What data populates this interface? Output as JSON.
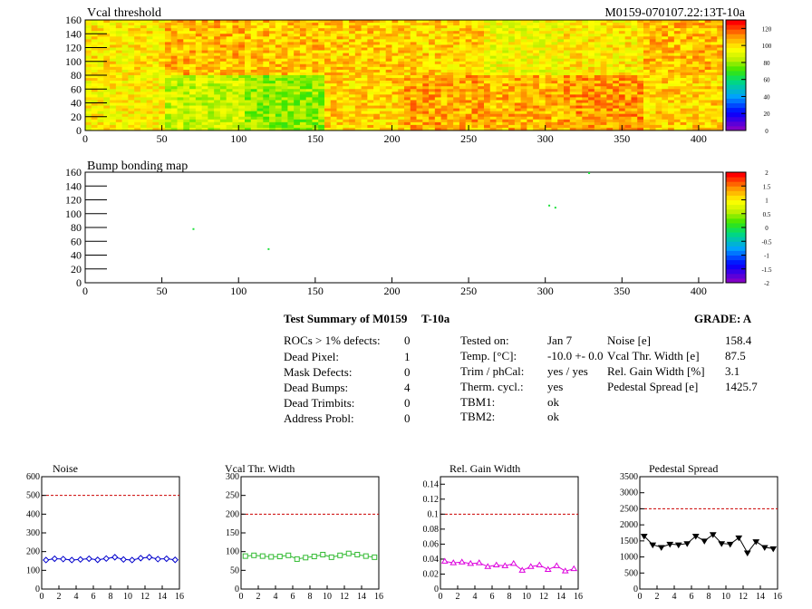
{
  "header": {
    "vcal_title": "Vcal threshold",
    "module_id": "M0159-070107.22:13T-10a",
    "bump_title": "Bump bonding map"
  },
  "map_axes": {
    "x_ticks": [
      "0",
      "50",
      "100",
      "150",
      "200",
      "250",
      "300",
      "350",
      "400"
    ],
    "y_ticks": [
      "0",
      "20",
      "40",
      "60",
      "80",
      "100",
      "120",
      "140",
      "160"
    ]
  },
  "vcal_scale": [
    "0",
    "20",
    "40",
    "60",
    "80",
    "100",
    "120"
  ],
  "bump_scale": [
    "-2",
    "-1.5",
    "-1",
    "-0.5",
    "0",
    "0.5",
    "1",
    "1.5",
    "2"
  ],
  "colors": {
    "ref_line": "#cc0000",
    "noise": "#0000cc",
    "vcal": "#33bb33",
    "gain": "#dd00dd",
    "pedestal": "#000000"
  },
  "summary": {
    "title": "Test Summary of M0159",
    "temp_tag": "T-10a",
    "grade": "GRADE:  A",
    "col1": [
      {
        "label": "ROCs > 1% defects:",
        "value": "0"
      },
      {
        "label": "Dead Pixel:",
        "value": "1"
      },
      {
        "label": "Mask Defects:",
        "value": "0"
      },
      {
        "label": "Dead Bumps:",
        "value": "4"
      },
      {
        "label": "Dead Trimbits:",
        "value": "0"
      },
      {
        "label": "Address Probl:",
        "value": "0"
      }
    ],
    "col2": [
      {
        "label": "Tested on:",
        "value": "Jan 7"
      },
      {
        "label": "Temp. [°C]:",
        "value": "-10.0 +- 0.0"
      },
      {
        "label": "Trim / phCal:",
        "value": "yes / yes"
      },
      {
        "label": "Therm. cycl.:",
        "value": "yes"
      },
      {
        "label": "TBM1:",
        "value": "ok"
      },
      {
        "label": "TBM2:",
        "value": "ok"
      }
    ],
    "col3": [
      {
        "label": "Noise [e]",
        "value": "158.4"
      },
      {
        "label": "Vcal Thr. Width [e]",
        "value": "87.5"
      },
      {
        "label": "Rel. Gain Width [%]",
        "value": "3.1"
      },
      {
        "label": "Pedestal Spread [e]",
        "value": "1425.7"
      }
    ]
  },
  "chart_data": [
    {
      "type": "heatmap",
      "title": "Vcal threshold",
      "xlim": [
        0,
        416
      ],
      "ylim": [
        0,
        160
      ],
      "zlim": [
        0,
        130
      ],
      "roc_mean_z": [
        [
          100,
          108,
          106,
          105,
          104,
          95,
          100,
          107
        ],
        [
          98,
          88,
          80,
          104,
          110,
          108,
          112,
          104
        ]
      ],
      "roc_layout": "2 rows x 8 ROCs (top row first)"
    },
    {
      "type": "heatmap",
      "title": "Bump bonding map",
      "xlim": [
        0,
        416
      ],
      "ylim": [
        0,
        160
      ],
      "zlim": [
        -2,
        2
      ],
      "points": [
        {
          "x": 70,
          "y": 79,
          "z": 0
        },
        {
          "x": 119,
          "y": 50,
          "z": 0
        },
        {
          "x": 302,
          "y": 113,
          "z": 0
        },
        {
          "x": 306,
          "y": 110,
          "z": 0
        },
        {
          "x": 328,
          "y": 160,
          "z": 0
        }
      ]
    },
    {
      "type": "scatter",
      "title": "Noise",
      "xlim": [
        0,
        16
      ],
      "ylim": [
        0,
        600
      ],
      "x_ticks": [
        "0",
        "2",
        "4",
        "6",
        "8",
        "10",
        "12",
        "14",
        "16"
      ],
      "y_ticks": [
        "0",
        "100",
        "200",
        "300",
        "400",
        "500",
        "600"
      ],
      "reference": 500,
      "x": [
        0.5,
        1.5,
        2.5,
        3.5,
        4.5,
        5.5,
        6.5,
        7.5,
        8.5,
        9.5,
        10.5,
        11.5,
        12.5,
        13.5,
        14.5,
        15.5
      ],
      "values": [
        155,
        162,
        160,
        155,
        158,
        162,
        156,
        163,
        170,
        158,
        155,
        165,
        170,
        160,
        162,
        156
      ]
    },
    {
      "type": "scatter",
      "title": "Vcal Thr. Width",
      "xlim": [
        0,
        16
      ],
      "ylim": [
        0,
        300
      ],
      "x_ticks": [
        "0",
        "2",
        "4",
        "6",
        "8",
        "10",
        "12",
        "14",
        "16"
      ],
      "y_ticks": [
        "0",
        "50",
        "100",
        "150",
        "200",
        "250",
        "300"
      ],
      "reference": 200,
      "x": [
        0.5,
        1.5,
        2.5,
        3.5,
        4.5,
        5.5,
        6.5,
        7.5,
        8.5,
        9.5,
        10.5,
        11.5,
        12.5,
        13.5,
        14.5,
        15.5
      ],
      "values": [
        88,
        90,
        88,
        86,
        87,
        90,
        80,
        84,
        87,
        92,
        85,
        90,
        95,
        92,
        88,
        85
      ]
    },
    {
      "type": "scatter",
      "title": "Rel. Gain Width",
      "xlim": [
        0,
        16
      ],
      "ylim": [
        0,
        0.15
      ],
      "x_ticks": [
        "0",
        "2",
        "4",
        "6",
        "8",
        "10",
        "12",
        "14",
        "16"
      ],
      "y_ticks": [
        "0",
        "0.02",
        "0.04",
        "0.06",
        "0.08",
        "0.1",
        "0.12",
        "0.14"
      ],
      "reference": 0.1,
      "x": [
        0.5,
        1.5,
        2.5,
        3.5,
        4.5,
        5.5,
        6.5,
        7.5,
        8.5,
        9.5,
        10.5,
        11.5,
        12.5,
        13.5,
        14.5,
        15.5
      ],
      "values": [
        0.037,
        0.035,
        0.036,
        0.034,
        0.035,
        0.03,
        0.032,
        0.031,
        0.034,
        0.025,
        0.03,
        0.032,
        0.026,
        0.031,
        0.024,
        0.027
      ]
    },
    {
      "type": "line",
      "title": "Pedestal Spread",
      "xlim": [
        0,
        16
      ],
      "ylim": [
        0,
        3500
      ],
      "x_ticks": [
        "0",
        "2",
        "4",
        "6",
        "8",
        "10",
        "12",
        "14",
        "16"
      ],
      "y_ticks": [
        "0",
        "500",
        "1000",
        "1500",
        "2000",
        "2500",
        "3000",
        "3500"
      ],
      "reference": 2500,
      "x": [
        0.5,
        1.5,
        2.5,
        3.5,
        4.5,
        5.5,
        6.5,
        7.5,
        8.5,
        9.5,
        10.5,
        11.5,
        12.5,
        13.5,
        14.5,
        15.5
      ],
      "values": [
        1650,
        1380,
        1300,
        1400,
        1380,
        1420,
        1650,
        1500,
        1700,
        1420,
        1400,
        1600,
        1130,
        1480,
        1300,
        1260
      ]
    }
  ]
}
